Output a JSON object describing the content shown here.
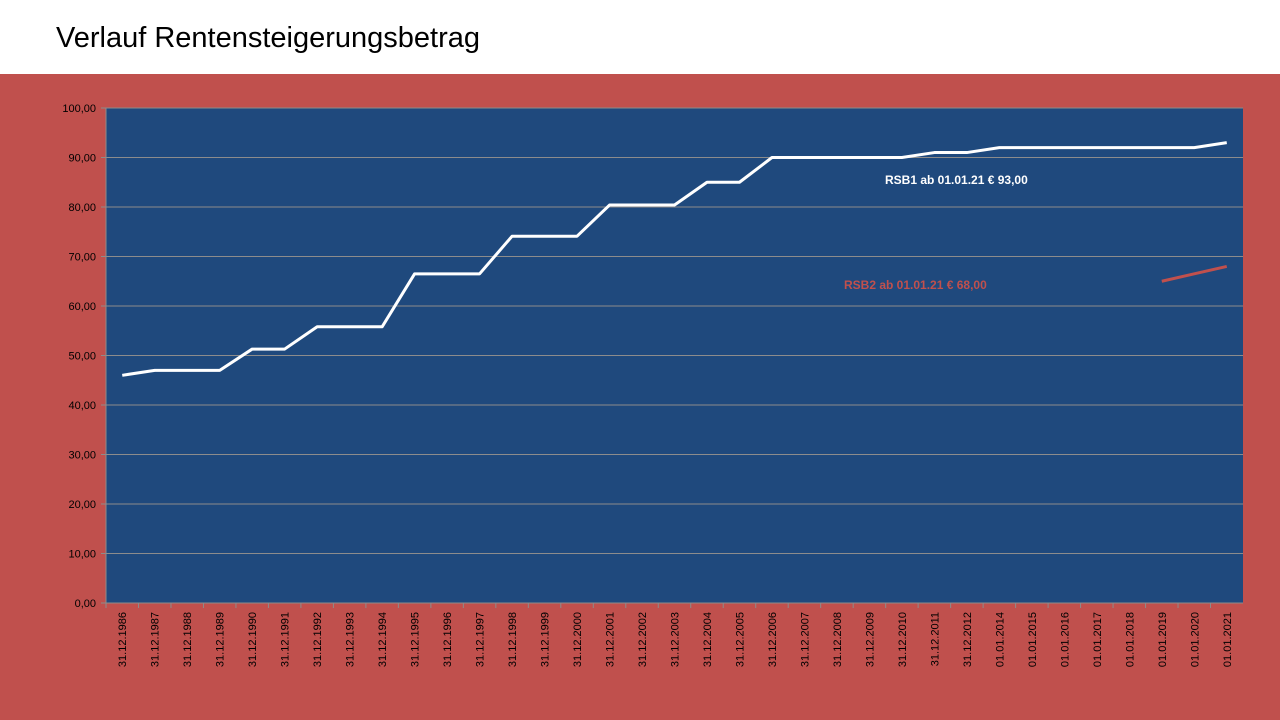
{
  "title": "Verlauf Rentensteigerungsbetrag",
  "colors": {
    "background": "#c0504d",
    "plot_area": "#1f497d",
    "rsb1": "#ffffff",
    "rsb2": "#c0504d",
    "grid": "#8c8c8c"
  },
  "chart_data": {
    "type": "line",
    "title": "",
    "xlabel": "",
    "ylabel": "",
    "ylim": [
      0,
      100
    ],
    "ytick_step": 10,
    "ytick_labels": [
      "0,00",
      "10,00",
      "20,00",
      "30,00",
      "40,00",
      "50,00",
      "60,00",
      "70,00",
      "80,00",
      "90,00",
      "100,00"
    ],
    "grid": true,
    "legend": "none",
    "categories": [
      "31.12.1986",
      "31.12.1987",
      "31.12.1988",
      "31.12.1989",
      "31.12.1990",
      "31.12.1991",
      "31.12.1992",
      "31.12.1993",
      "31.12.1994",
      "31.12.1995",
      "31.12.1996",
      "31.12.1997",
      "31.12.1998",
      "31.12.1999",
      "31.12.2000",
      "31.12.2001",
      "31.12.2002",
      "31.12.2003",
      "31.12.2004",
      "31.12.2005",
      "31.12.2006",
      "31.12.2007",
      "31.12.2008",
      "31.12.2009",
      "31.12.2010",
      "31.12.2011",
      "31.12.2012",
      "01.01.2014",
      "01.01.2015",
      "01.01.2016",
      "01.01.2017",
      "01.01.2018",
      "01.01.2019",
      "01.01.2020",
      "01.01.2021"
    ],
    "series": [
      {
        "color": "#ffffff",
        "values": [
          46,
          47,
          47,
          47,
          51.3,
          51.3,
          55.8,
          55.8,
          55.8,
          66.5,
          66.5,
          66.5,
          74.1,
          74.1,
          74.1,
          80.4,
          80.4,
          80.4,
          85,
          85,
          90,
          90,
          90,
          90,
          90,
          91,
          91,
          92,
          92,
          92,
          92,
          92,
          92,
          92,
          93
        ]
      },
      {
        "color": "#c0504d",
        "values": [
          null,
          null,
          null,
          null,
          null,
          null,
          null,
          null,
          null,
          null,
          null,
          null,
          null,
          null,
          null,
          null,
          null,
          null,
          null,
          null,
          null,
          null,
          null,
          null,
          null,
          null,
          null,
          null,
          null,
          null,
          null,
          null,
          65,
          66.5,
          68
        ]
      }
    ],
    "annotations": [
      {
        "text": "RSB1 ab  01.01.21  € 93,00",
        "color": "#ffffff"
      },
      {
        "text": "RSB2 ab  01.01.21  € 68,00",
        "color": "#c0504d"
      }
    ]
  }
}
